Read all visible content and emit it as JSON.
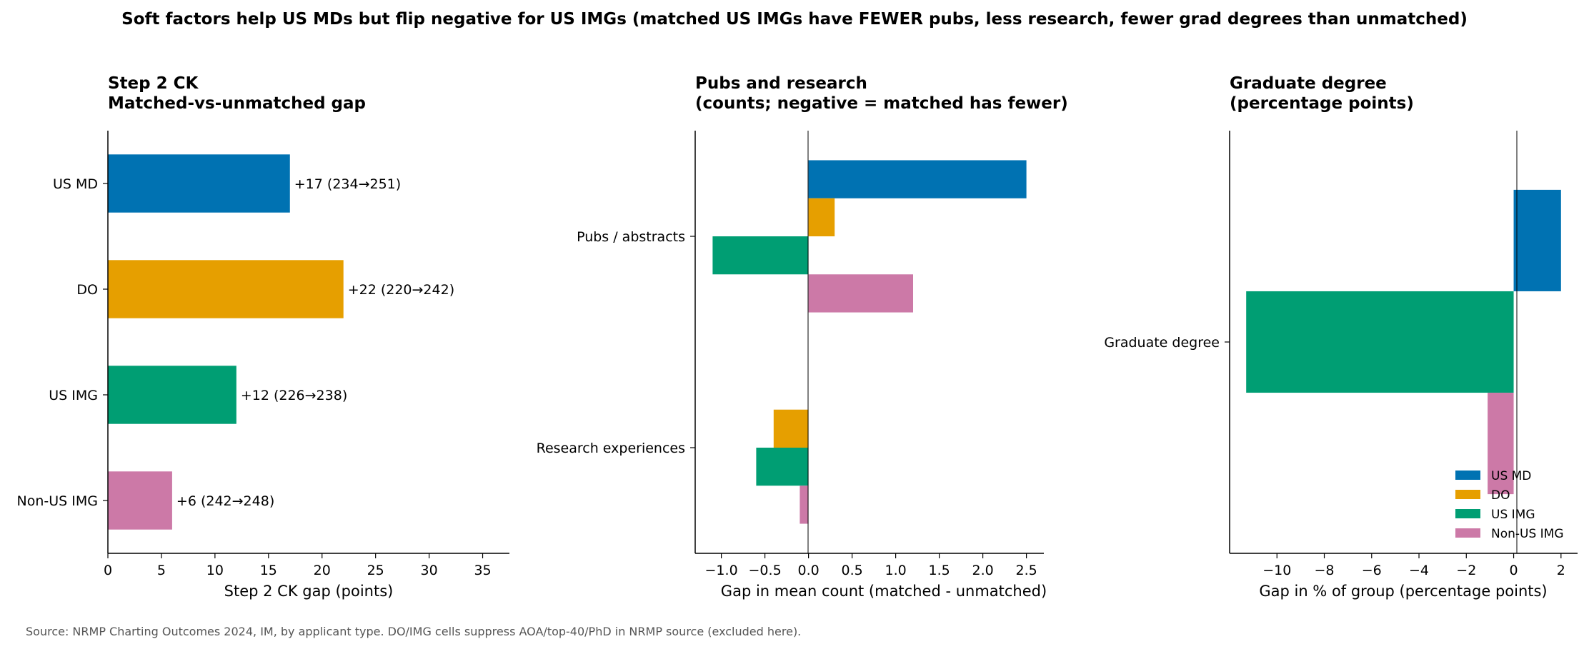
{
  "figure": {
    "suptitle": "Soft factors help US MDs but flip negative for US IMGs (matched US IMGs have FEWER pubs, less research, fewer grad degrees than unmatched)",
    "source": "Source: NRMP Charting Outcomes 2024, IM, by applicant type. DO/IMG cells suppress AOA/top-40/PhD in NRMP source (excluded here)."
  },
  "colors": {
    "US MD": "#0072b2",
    "DO": "#e69f00",
    "US IMG": "#009e73",
    "Non-US IMG": "#cc79a7"
  },
  "chart_data": [
    {
      "type": "bar",
      "orientation": "horizontal",
      "title": [
        "Step 2 CK",
        "Matched-vs-unmatched gap"
      ],
      "xlabel": "Step 2 CK gap (points)",
      "categories": [
        "US MD",
        "DO",
        "US IMG",
        "Non-US IMG"
      ],
      "values": [
        17,
        22,
        12,
        6
      ],
      "data_labels": [
        "+17  (234→251)",
        "+22  (220→242)",
        "+12  (226→238)",
        "+6  (242→248)"
      ],
      "xlim": [
        0,
        37.5
      ],
      "xticks": [
        0,
        5,
        10,
        15,
        20,
        25,
        30,
        35
      ]
    },
    {
      "type": "bar",
      "orientation": "horizontal",
      "title": [
        "Pubs and research",
        "(counts; negative = matched has fewer)"
      ],
      "xlabel": "Gap in mean count (matched - unmatched)",
      "categories": [
        "Pubs / abstracts",
        "Research experiences"
      ],
      "series": [
        {
          "name": "US MD",
          "values": [
            2.5,
            null
          ]
        },
        {
          "name": "DO",
          "values": [
            0.3,
            -0.4
          ]
        },
        {
          "name": "US IMG",
          "values": [
            -1.1,
            -0.6
          ]
        },
        {
          "name": "Non-US IMG",
          "values": [
            1.2,
            -0.1
          ]
        }
      ],
      "xlim": [
        -1.3,
        2.7
      ],
      "xticks": [
        -1.0,
        -0.5,
        0.0,
        0.5,
        1.0,
        1.5,
        2.0,
        2.5
      ],
      "xtick_labels": [
        "−1.0",
        "−0.5",
        "0.0",
        "0.5",
        "1.0",
        "1.5",
        "2.0",
        "2.5"
      ]
    },
    {
      "type": "bar",
      "orientation": "horizontal",
      "title": [
        "Graduate degree",
        "(percentage points)"
      ],
      "xlabel": "Gap in % of group (percentage points)",
      "categories": [
        "Graduate degree"
      ],
      "series": [
        {
          "name": "US MD",
          "values": [
            2.0
          ]
        },
        {
          "name": "US IMG",
          "values": [
            -11.3
          ]
        },
        {
          "name": "Non-US IMG",
          "values": [
            -1.1
          ]
        }
      ],
      "xlim": [
        -12,
        2.7
      ],
      "xticks": [
        -10,
        -8,
        -6,
        -4,
        -2,
        0,
        2
      ],
      "xtick_labels": [
        "−10",
        "−8",
        "−6",
        "−4",
        "−2",
        "0",
        "2"
      ],
      "legend": {
        "position": "lower-right",
        "entries": [
          "US MD",
          "DO",
          "US IMG",
          "Non-US IMG"
        ]
      }
    }
  ]
}
